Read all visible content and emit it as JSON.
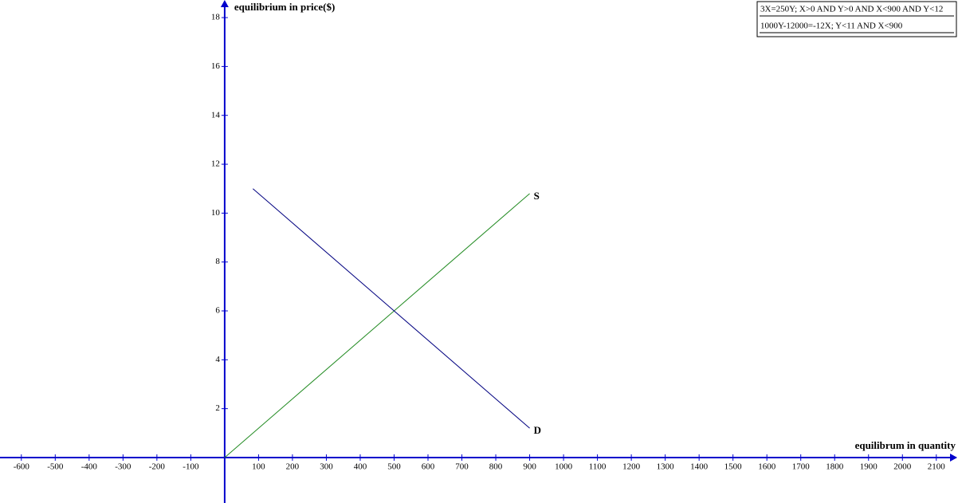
{
  "chart_data": {
    "type": "line",
    "xlabel": "equilibrum in quantity",
    "ylabel": "equilibrium in price($)",
    "xlim": [
      -663,
      2164
    ],
    "ylim": [
      -1.86,
      18.72
    ],
    "xticks": [
      -600,
      -500,
      -400,
      -300,
      -200,
      -100,
      100,
      200,
      300,
      400,
      500,
      600,
      700,
      800,
      900,
      1000,
      1100,
      1200,
      1300,
      1400,
      1500,
      1600,
      1700,
      1800,
      1900,
      2000,
      2100
    ],
    "yticks": [
      2,
      4,
      6,
      8,
      10,
      12,
      14,
      16,
      18
    ],
    "axis_color": "#0000cc",
    "legend": "upper right",
    "series": [
      {
        "name": "3X=250Y; X>0 AND Y>0  AND X<900 AND Y<12",
        "label": "S",
        "color": "#228b22",
        "x": [
          0,
          900
        ],
        "values": [
          0,
          10.8
        ]
      },
      {
        "name": "1000Y-12000=-12X; Y<11 AND X<900",
        "label": "D",
        "color": "#000080",
        "x": [
          83.33,
          900
        ],
        "values": [
          11,
          1.2
        ]
      }
    ]
  }
}
